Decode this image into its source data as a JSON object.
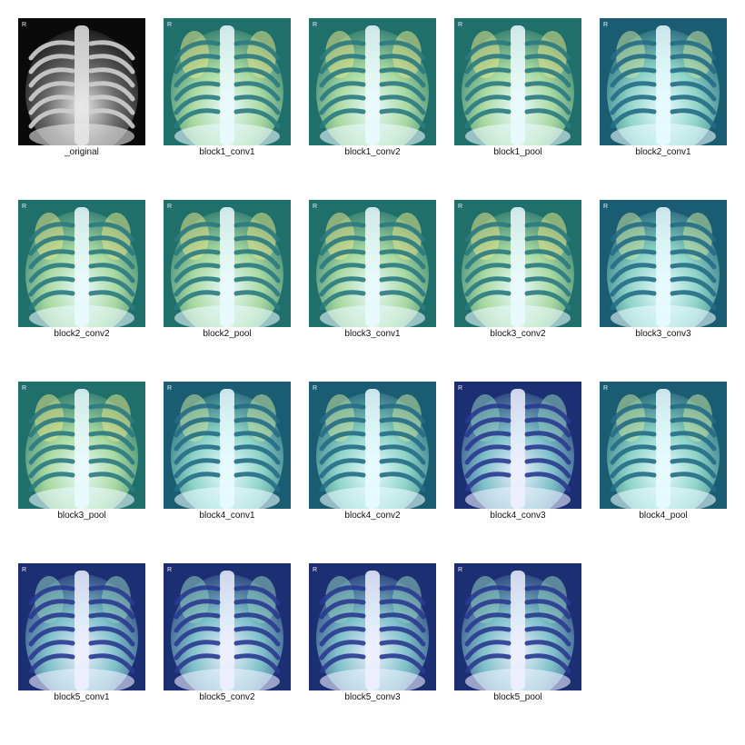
{
  "figure": {
    "panels": [
      {
        "label": "_original",
        "style": "grayscale"
      },
      {
        "label": "block1_conv1",
        "style": "viridis-yellow"
      },
      {
        "label": "block1_conv2",
        "style": "viridis-yellow"
      },
      {
        "label": "block1_pool",
        "style": "viridis-yellow"
      },
      {
        "label": "block2_conv1",
        "style": "viridis-teal"
      },
      {
        "label": "block2_conv2",
        "style": "viridis-yellow"
      },
      {
        "label": "block2_pool",
        "style": "viridis-yellow"
      },
      {
        "label": "block3_conv1",
        "style": "viridis-yellow"
      },
      {
        "label": "block3_conv2",
        "style": "viridis-yellow"
      },
      {
        "label": "block3_conv3",
        "style": "viridis-teal"
      },
      {
        "label": "block3_pool",
        "style": "viridis-yellow"
      },
      {
        "label": "block4_conv1",
        "style": "viridis-teal"
      },
      {
        "label": "block4_conv2",
        "style": "viridis-teal"
      },
      {
        "label": "block4_conv3",
        "style": "viridis-blue"
      },
      {
        "label": "block4_pool",
        "style": "viridis-teal"
      },
      {
        "label": "block5_conv1",
        "style": "viridis-blue"
      },
      {
        "label": "block5_conv2",
        "style": "viridis-blue"
      },
      {
        "label": "block5_conv3",
        "style": "viridis-blue"
      },
      {
        "label": "block5_pool",
        "style": "viridis-blue"
      }
    ],
    "palette": {
      "grayscale": {
        "bg": "#0a0a0a",
        "mid": "#6a6a6a",
        "bright": "#e8e8e8",
        "rib": "#cfcfcf"
      },
      "viridis-yellow": {
        "bg": "#1f6f6a",
        "mid": "#a9d9a0",
        "bright": "#eafaff",
        "rib": "#2a7a80",
        "accent": "#e6e58a"
      },
      "viridis-teal": {
        "bg": "#1a5c72",
        "mid": "#8fd4c8",
        "bright": "#e9fbff",
        "rib": "#236d86",
        "accent": "#c9e6a2"
      },
      "viridis-blue": {
        "bg": "#1d2f73",
        "mid": "#7fc1c9",
        "bright": "#eef0ff",
        "rib": "#2a3a90",
        "accent": "#8fd0c0"
      }
    },
    "corner_glyph": "R"
  }
}
